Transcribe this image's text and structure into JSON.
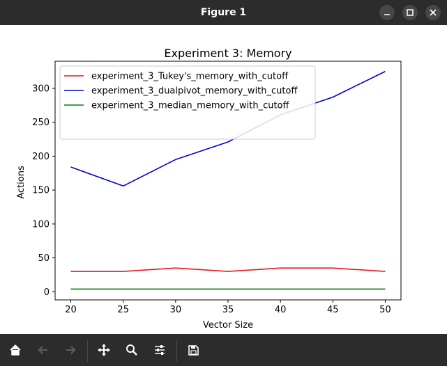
{
  "window": {
    "title": "Figure 1",
    "controls": [
      "minimize-icon",
      "maximize-icon",
      "close-icon"
    ]
  },
  "toolbar": {
    "buttons": [
      {
        "name": "home-button",
        "icon": "home-icon",
        "enabled": true
      },
      {
        "name": "back-button",
        "icon": "arrow-left-icon",
        "enabled": false
      },
      {
        "name": "forward-button",
        "icon": "arrow-right-icon",
        "enabled": false
      },
      {
        "name": "pan-button",
        "icon": "move-icon",
        "enabled": true
      },
      {
        "name": "zoom-button",
        "icon": "magnifier-icon",
        "enabled": true
      },
      {
        "name": "configure-subplots-button",
        "icon": "sliders-icon",
        "enabled": true
      },
      {
        "name": "save-button",
        "icon": "floppy-disk-icon",
        "enabled": true
      }
    ]
  },
  "chart_data": {
    "type": "line",
    "title": "Experiment 3: Memory",
    "xlabel": "Vector Size",
    "ylabel": "Actions",
    "x": [
      20,
      25,
      30,
      35,
      40,
      45,
      50
    ],
    "xticks": [
      20,
      25,
      30,
      35,
      40,
      45,
      50
    ],
    "yticks": [
      0,
      50,
      100,
      150,
      200,
      250,
      300
    ],
    "xlim": [
      18.5,
      51.5
    ],
    "ylim": [
      -12,
      340
    ],
    "grid": false,
    "legend_position": "upper-left",
    "series": [
      {
        "name": "experiment_3_Tukey's_memory_with_cutoff",
        "color": "#e41a1c",
        "values": [
          30,
          30,
          35,
          30,
          35,
          35,
          30
        ]
      },
      {
        "name": "experiment_3_dualpivot_memory_with_cutoff",
        "color": "#0000cc",
        "values": [
          184,
          156,
          195,
          221,
          261,
          287,
          325
        ]
      },
      {
        "name": "experiment_3_median_memory_with_cutoff",
        "color": "#008000",
        "values": [
          4,
          4,
          4,
          4,
          4,
          4,
          4
        ]
      }
    ]
  }
}
